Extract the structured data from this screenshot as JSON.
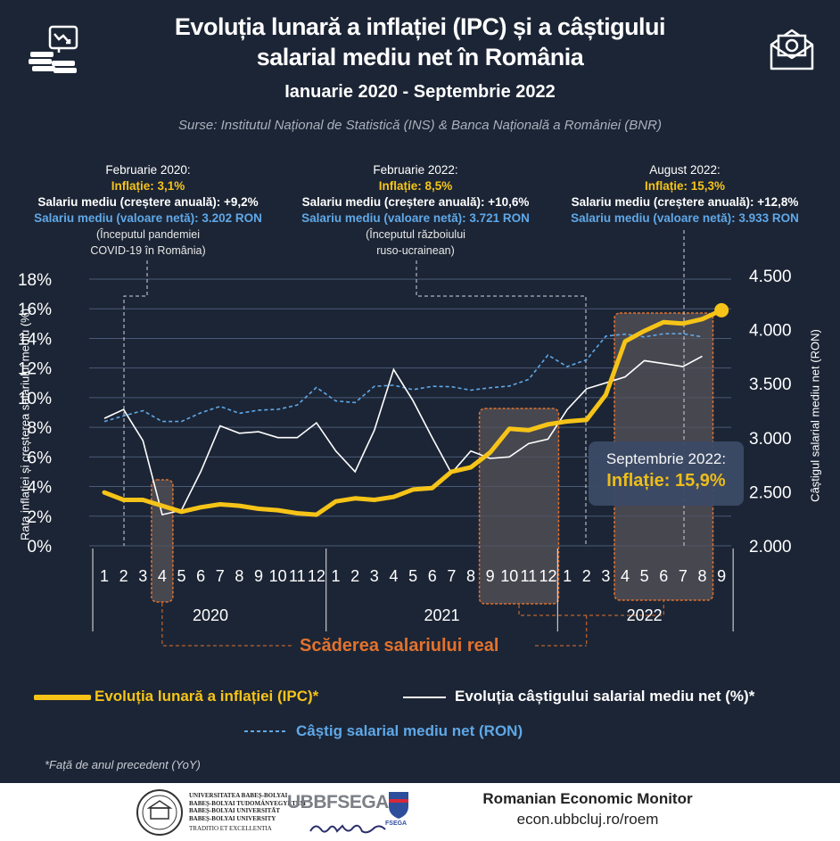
{
  "header": {
    "title_line1": "Evoluția lunară a inflației (IPC) și a câștigului",
    "title_line2": "salarial mediu net în România",
    "subtitle": "Ianuarie 2020 - Septembrie 2022",
    "sources": "Surse:  Institutul Național de Statistică (INS) & Banca Națională a României (BNR)"
  },
  "annotations": [
    {
      "date": "Februarie 2020:",
      "inflation": "Inflație: 3,1%",
      "wage_growth": "Salariu mediu (creștere anuală): +9,2%",
      "wage_value": "Salariu mediu (valoare netă): 3.202 RON",
      "note1": "(Începutul pandemiei",
      "note2": "COVID-19 în România)"
    },
    {
      "date": "Februarie 2022:",
      "inflation": "Inflație: 8,5%",
      "wage_growth": "Salariu mediu (creștere anuală):  +10,6%",
      "wage_value": "Salariu mediu (valoare netă): 3.721 RON",
      "note1": "(Începutul războiului",
      "note2": "ruso-ucrainean)"
    },
    {
      "date": "August 2022:",
      "inflation": "Inflație: 15,3%",
      "wage_growth": "Salariu mediu (creștere anuală): +12,8%",
      "wage_value": "Salariu mediu (valoare netă): 3.933 RON",
      "note1": "",
      "note2": ""
    }
  ],
  "callout": {
    "line1": "Septembrie 2022:",
    "line2": "Inflație: 15,9%"
  },
  "real_wage_decline_label": "Scăderea salariului real",
  "legend": {
    "inflation": "Evoluția lunară a inflației (IPC)*",
    "wage_growth": "Evoluția câștigului salarial mediu net (%)*",
    "wage_ron": "Câștig salarial mediu net (RON)"
  },
  "footnote": "*Față de anul precedent (YoY)",
  "footer": {
    "uni_lines": [
      "UNIVERSITATEA BABEȘ-BOLYAI",
      "BABEȘ-BOLYAI TUDOMÁNYEGYETEM",
      "BABEȘ-BOLYAI UNIVERSITÄT",
      "BABEȘ-BOLYAI UNIVERSITY",
      "TRADITIO ET EXCELLENTIA"
    ],
    "fsega_logo": "UBBFSEGA",
    "fsega_badge": "FSEGA",
    "monitor_title": "Romanian Economic Monitor",
    "monitor_url": "econ.ubbcluj.ro/roem"
  },
  "colors": {
    "background": "#1c2535",
    "inflation": "#f6c418",
    "wage_growth": "#ffffff",
    "wage_ron": "#5fa8e8",
    "accent_orange": "#e2722e",
    "highlight_box": "#56535a"
  },
  "icons": [
    "chart-coins-icon",
    "money-envelope-icon"
  ],
  "chart_data": {
    "type": "line",
    "x_tick_labels": [
      "1",
      "2",
      "3",
      "4",
      "5",
      "6",
      "7",
      "8",
      "9",
      "10",
      "11",
      "12",
      "1",
      "2",
      "3",
      "4",
      "5",
      "6",
      "7",
      "8",
      "9",
      "10",
      "11",
      "12",
      "1",
      "2",
      "3",
      "4",
      "5",
      "6",
      "7",
      "8",
      "9"
    ],
    "years": [
      "2020",
      "2021",
      "2022"
    ],
    "y_left": {
      "label": "Rata inflației și creșterea salariului mediu (%)",
      "ticks": [
        "0%",
        "2%",
        "4%",
        "6%",
        "8%",
        "10%",
        "12%",
        "14%",
        "16%",
        "18%"
      ],
      "ylim": [
        0,
        18
      ]
    },
    "y_right": {
      "label": "Câștigul salarial mediu net (RON)",
      "ticks": [
        "2.000",
        "2.500",
        "3.000",
        "3.500",
        "4.000",
        "4.500"
      ],
      "ylim": [
        2000,
        4500
      ]
    },
    "series": [
      {
        "name": "Evoluția lunară a inflației (IPC)*",
        "axis": "left",
        "values": [
          3.6,
          3.1,
          3.1,
          2.7,
          2.3,
          2.6,
          2.8,
          2.7,
          2.5,
          2.4,
          2.2,
          2.1,
          3.0,
          3.2,
          3.1,
          3.3,
          3.8,
          3.9,
          5.0,
          5.3,
          6.3,
          7.9,
          7.8,
          8.2,
          8.4,
          8.5,
          10.2,
          13.8,
          14.5,
          15.1,
          15.0,
          15.3,
          15.9
        ]
      },
      {
        "name": "Evoluția câștigului salarial mediu net (%)*",
        "axis": "left",
        "values": [
          8.6,
          9.2,
          7.1,
          2.1,
          2.4,
          5.0,
          8.1,
          7.6,
          7.7,
          7.3,
          7.3,
          8.3,
          6.4,
          5.0,
          7.8,
          11.9,
          9.8,
          7.3,
          4.9,
          6.4,
          5.9,
          6.0,
          6.9,
          7.2,
          9.2,
          10.6,
          11.0,
          11.4,
          12.5,
          12.3,
          12.1,
          12.8,
          null
        ]
      },
      {
        "name": "Câștig salarial mediu net (RON)",
        "axis": "right",
        "values": [
          3150,
          3202,
          3250,
          3150,
          3150,
          3230,
          3290,
          3225,
          3255,
          3262,
          3302,
          3465,
          3340,
          3325,
          3475,
          3485,
          3445,
          3475,
          3472,
          3440,
          3462,
          3478,
          3540,
          3765,
          3658,
          3721,
          3940,
          3958,
          3932,
          3962,
          3962,
          3933,
          null
        ]
      }
    ],
    "highlighted_months": [
      {
        "from": "2020-4",
        "to": "2020-4"
      },
      {
        "from": "2021-9",
        "to": "2021-12"
      },
      {
        "from": "2022-4",
        "to": "2022-8"
      }
    ]
  }
}
